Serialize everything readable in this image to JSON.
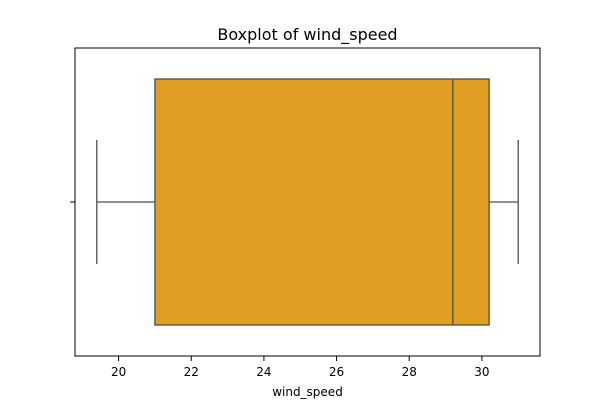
{
  "chart_data": {
    "type": "boxplot",
    "orientation": "horizontal",
    "title": "Boxplot of wind_speed",
    "xlabel": "wind_speed",
    "ylabel": "",
    "xlim": [
      18.8,
      31.6
    ],
    "xticks": [
      20,
      22,
      24,
      26,
      28,
      30
    ],
    "xtick_labels": [
      "20",
      "22",
      "24",
      "26",
      "28",
      "30"
    ],
    "grid": false,
    "box": {
      "whisker_low": 19.4,
      "q1": 21.0,
      "median": 29.2,
      "q3": 30.2,
      "whisker_high": 31.0
    },
    "colors": {
      "box_fill": "#e09e22",
      "line": "#4d4d4d",
      "frame": "#000000"
    }
  }
}
